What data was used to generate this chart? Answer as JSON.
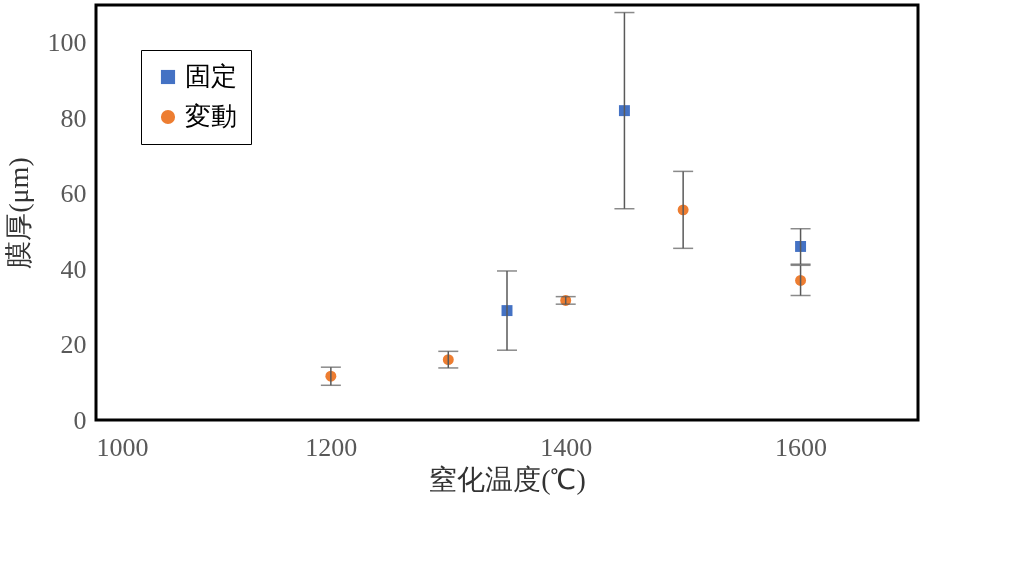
{
  "chart_data": {
    "type": "scatter",
    "xlabel": "窒化温度(℃)",
    "ylabel": "膜厚(μm)",
    "xlim": [
      1000,
      1700
    ],
    "ylim": [
      0,
      110
    ],
    "xticks": [
      1000,
      1200,
      1400,
      1600
    ],
    "yticks": [
      0,
      20,
      40,
      60,
      80,
      100
    ],
    "grid": false,
    "legend": "top left",
    "series": [
      {
        "name": "固定",
        "color": "#4472c4",
        "marker": "square",
        "x": [
          1350,
          1450,
          1600
        ],
        "values": [
          29,
          82,
          46
        ],
        "errors": [
          10.5,
          26,
          4.7
        ]
      },
      {
        "name": "変動",
        "color": "#ed7d31",
        "marker": "circle",
        "x": [
          1200,
          1300,
          1400,
          1500,
          1600
        ],
        "values": [
          11.6,
          16,
          31.7,
          55.7,
          37
        ],
        "errors": [
          2.4,
          2.2,
          1,
          10.2,
          4
        ]
      }
    ]
  }
}
